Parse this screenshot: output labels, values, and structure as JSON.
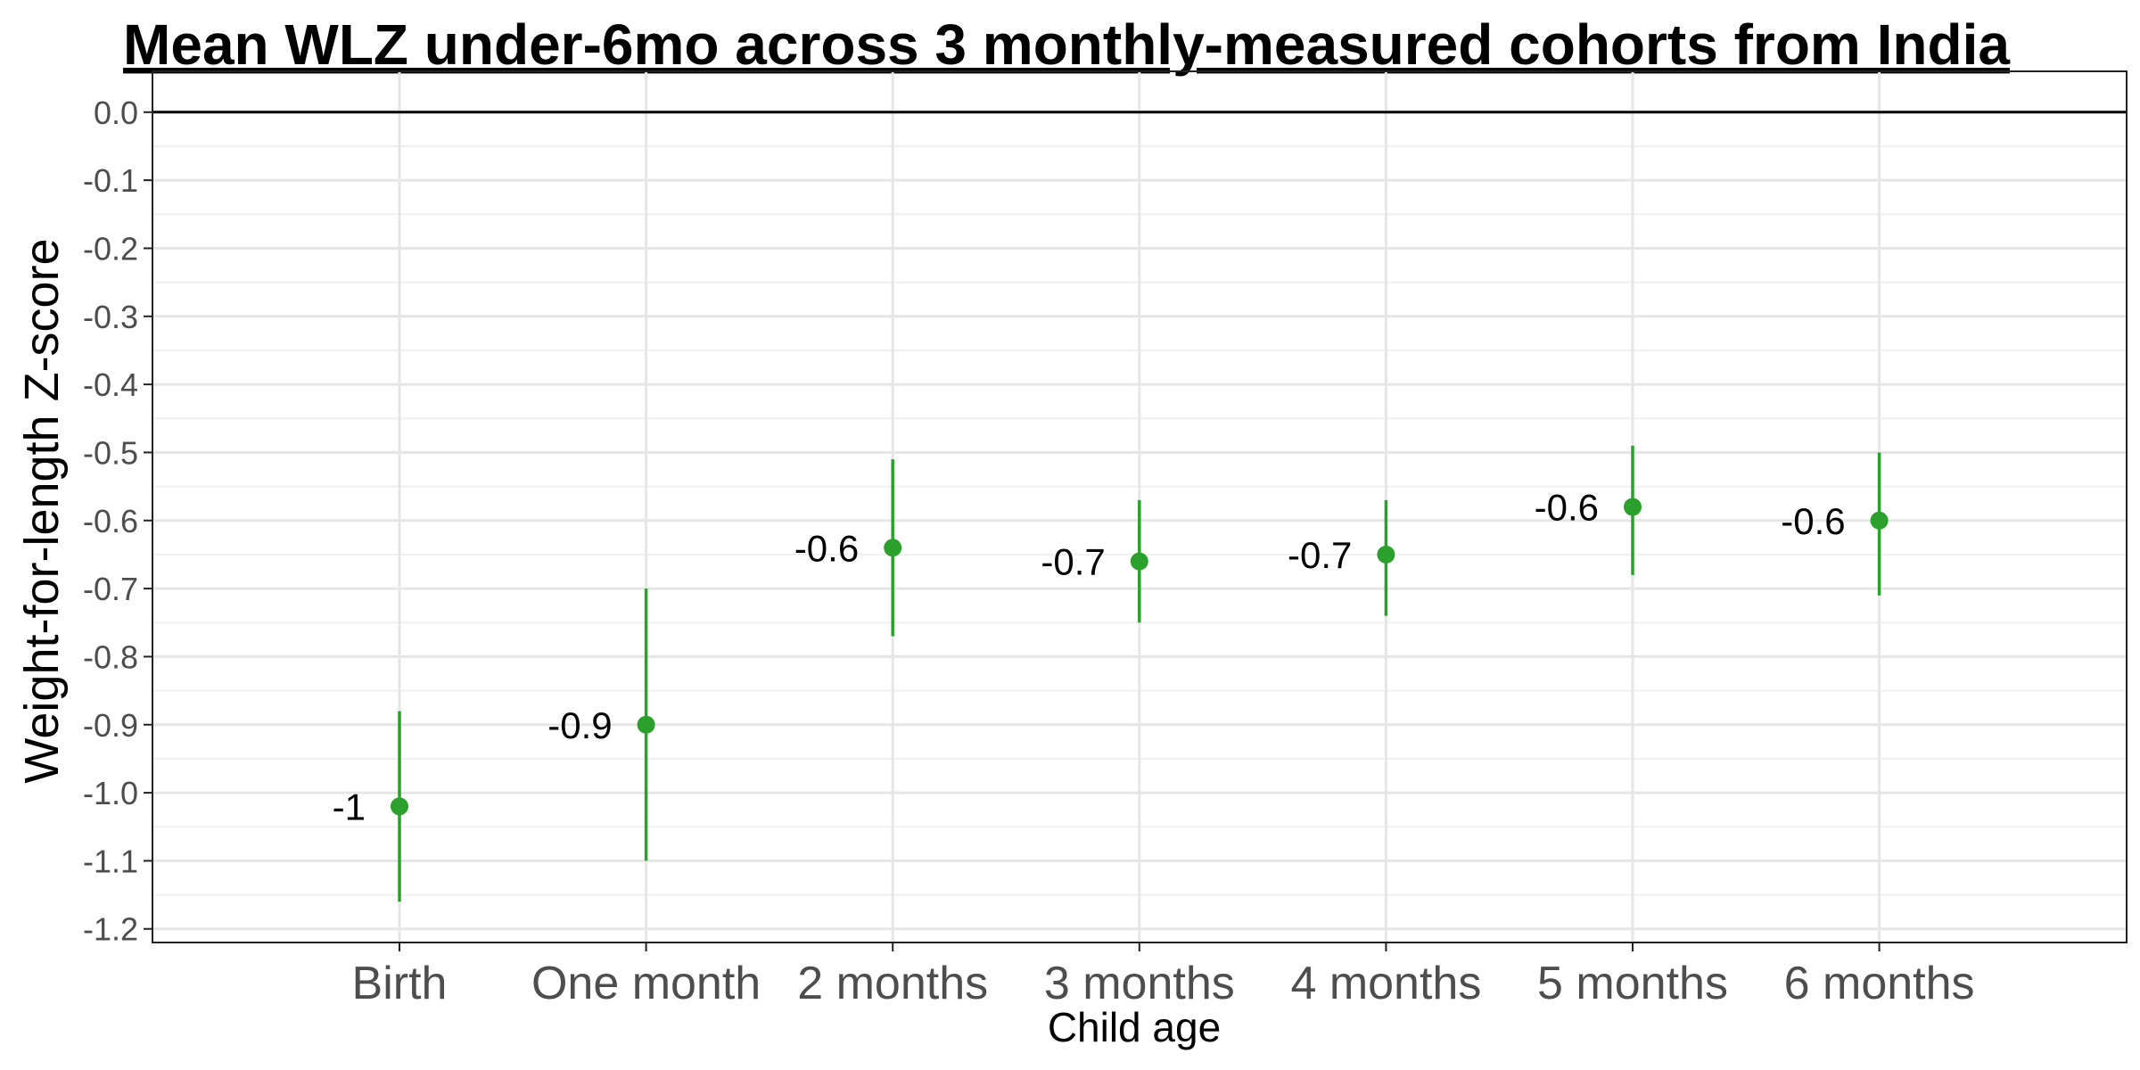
{
  "colors": {
    "point": "#2ca02c",
    "grid_major": "#e6e6e6",
    "grid_minor": "#f0f0f0",
    "panel_border": "#222222",
    "zero_line": "#000000"
  },
  "chart_data": {
    "type": "scatter",
    "title": "Mean WLZ under-6mo across 3 monthly-measured cohorts from India",
    "xlabel": "Child age",
    "ylabel": "Weight-for-length Z-score",
    "categories": [
      "Birth",
      "One month",
      "2 months",
      "3 months",
      "4 months",
      "5 months",
      "6 months"
    ],
    "values": [
      -1.02,
      -0.9,
      -0.64,
      -0.66,
      -0.65,
      -0.58,
      -0.6
    ],
    "ci_lower": [
      -1.16,
      -1.1,
      -0.77,
      -0.75,
      -0.74,
      -0.68,
      -0.71
    ],
    "ci_upper": [
      -0.88,
      -0.7,
      -0.51,
      -0.57,
      -0.57,
      -0.49,
      -0.5
    ],
    "labels": [
      "-1",
      "-0.9",
      "-0.6",
      "-0.7",
      "-0.7",
      "-0.6",
      "-0.6"
    ],
    "yticks": [
      "0.0",
      "-0.1",
      "-0.2",
      "-0.3",
      "-0.4",
      "-0.5",
      "-0.6",
      "-0.7",
      "-0.8",
      "-0.9",
      "-1.0",
      "-1.1",
      "-1.2"
    ],
    "ylim": [
      -1.22,
      0.06
    ],
    "reference_line": 0,
    "grid": true,
    "legend": "none"
  }
}
